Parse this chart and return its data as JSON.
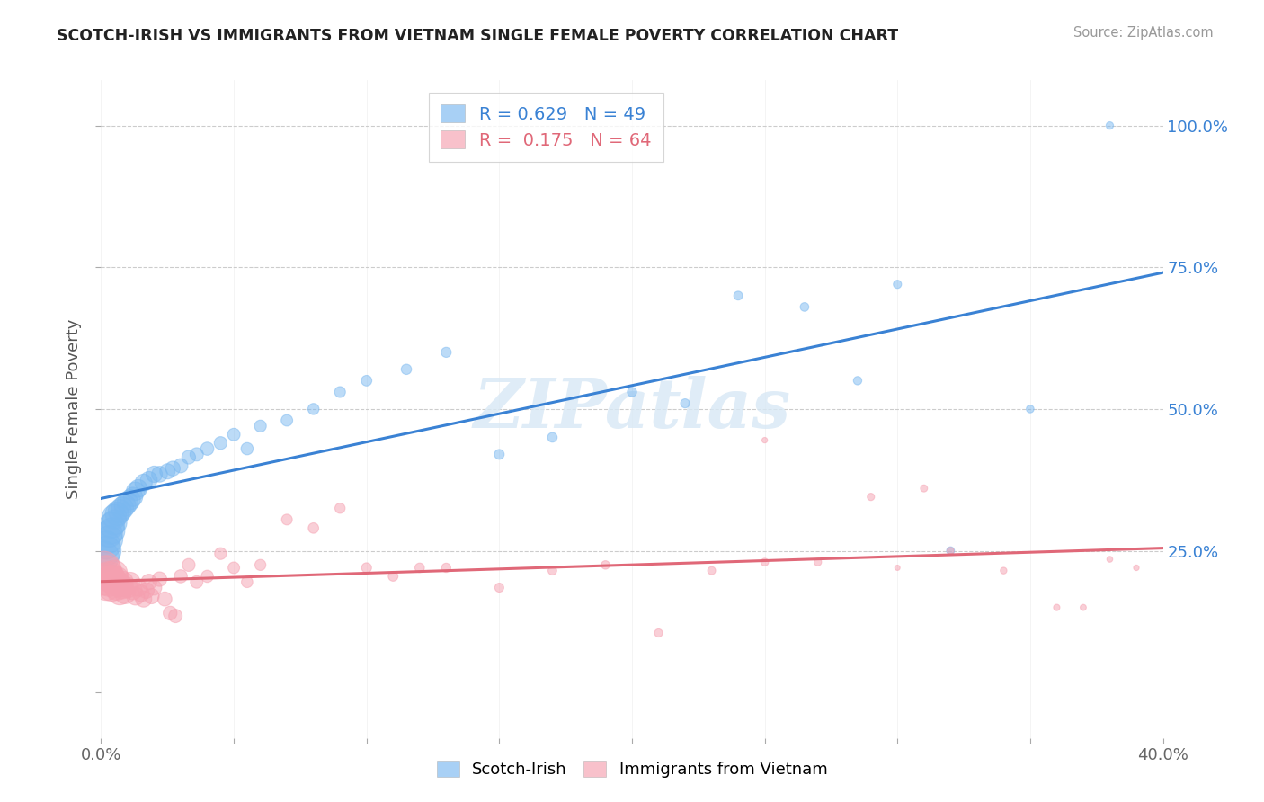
{
  "title": "SCOTCH-IRISH VS IMMIGRANTS FROM VIETNAM SINGLE FEMALE POVERTY CORRELATION CHART",
  "source": "Source: ZipAtlas.com",
  "ylabel": "Single Female Poverty",
  "ytick_values": [
    0.0,
    0.25,
    0.5,
    0.75,
    1.0
  ],
  "ytick_labels_right": [
    "",
    "25.0%",
    "50.0%",
    "75.0%",
    "100.0%"
  ],
  "xtick_minor_values": [
    0.0,
    0.05,
    0.1,
    0.15,
    0.2,
    0.25,
    0.3,
    0.35,
    0.4
  ],
  "xtick_label_positions": [
    0.0,
    0.4
  ],
  "xtick_label_texts": [
    "0.0%",
    "40.0%"
  ],
  "xmin": 0.0,
  "xmax": 0.4,
  "ymin": -0.08,
  "ymax": 1.08,
  "blue_R": "0.629",
  "blue_N": "49",
  "pink_R": "0.175",
  "pink_N": "64",
  "blue_color": "#7ab8f0",
  "pink_color": "#f5a0b0",
  "blue_line_color": "#3a82d4",
  "pink_line_color": "#e06878",
  "watermark": "ZIPatlas",
  "legend_label_blue": "Scotch-Irish",
  "legend_label_pink": "Immigrants from Vietnam",
  "blue_scatter_x": [
    0.001,
    0.002,
    0.002,
    0.003,
    0.003,
    0.004,
    0.004,
    0.005,
    0.005,
    0.006,
    0.007,
    0.008,
    0.009,
    0.01,
    0.011,
    0.012,
    0.013,
    0.014,
    0.016,
    0.018,
    0.02,
    0.022,
    0.025,
    0.027,
    0.03,
    0.033,
    0.036,
    0.04,
    0.045,
    0.05,
    0.055,
    0.06,
    0.07,
    0.08,
    0.09,
    0.1,
    0.115,
    0.13,
    0.15,
    0.17,
    0.2,
    0.22,
    0.24,
    0.265,
    0.285,
    0.3,
    0.32,
    0.35,
    0.38
  ],
  "blue_scatter_y": [
    0.24,
    0.25,
    0.26,
    0.27,
    0.28,
    0.285,
    0.295,
    0.3,
    0.31,
    0.315,
    0.32,
    0.325,
    0.33,
    0.335,
    0.34,
    0.345,
    0.355,
    0.36,
    0.37,
    0.375,
    0.385,
    0.385,
    0.39,
    0.395,
    0.4,
    0.415,
    0.42,
    0.43,
    0.44,
    0.455,
    0.43,
    0.47,
    0.48,
    0.5,
    0.53,
    0.55,
    0.57,
    0.6,
    0.42,
    0.45,
    0.53,
    0.51,
    0.7,
    0.68,
    0.55,
    0.72,
    0.25,
    0.5,
    1.0
  ],
  "blue_scatter_size": [
    600,
    550,
    500,
    480,
    460,
    440,
    420,
    400,
    380,
    360,
    340,
    320,
    300,
    280,
    260,
    240,
    220,
    200,
    190,
    180,
    170,
    160,
    150,
    140,
    130,
    120,
    115,
    110,
    105,
    100,
    95,
    90,
    85,
    80,
    76,
    72,
    68,
    65,
    62,
    59,
    56,
    53,
    50,
    48,
    45,
    43,
    40,
    38,
    35
  ],
  "pink_scatter_x": [
    0.001,
    0.001,
    0.002,
    0.002,
    0.003,
    0.003,
    0.004,
    0.004,
    0.005,
    0.005,
    0.006,
    0.006,
    0.007,
    0.007,
    0.008,
    0.008,
    0.009,
    0.01,
    0.011,
    0.012,
    0.013,
    0.014,
    0.015,
    0.016,
    0.017,
    0.018,
    0.019,
    0.02,
    0.022,
    0.024,
    0.026,
    0.028,
    0.03,
    0.033,
    0.036,
    0.04,
    0.045,
    0.05,
    0.055,
    0.06,
    0.07,
    0.08,
    0.09,
    0.1,
    0.11,
    0.12,
    0.13,
    0.15,
    0.17,
    0.19,
    0.21,
    0.23,
    0.25,
    0.27,
    0.29,
    0.31,
    0.32,
    0.34,
    0.36,
    0.37,
    0.38,
    0.39,
    0.25,
    0.3
  ],
  "pink_scatter_y": [
    0.22,
    0.2,
    0.19,
    0.215,
    0.205,
    0.195,
    0.2,
    0.185,
    0.21,
    0.195,
    0.185,
    0.2,
    0.19,
    0.175,
    0.185,
    0.195,
    0.175,
    0.185,
    0.195,
    0.18,
    0.17,
    0.185,
    0.175,
    0.165,
    0.18,
    0.195,
    0.17,
    0.185,
    0.2,
    0.165,
    0.14,
    0.135,
    0.205,
    0.225,
    0.195,
    0.205,
    0.245,
    0.22,
    0.195,
    0.225,
    0.305,
    0.29,
    0.325,
    0.22,
    0.205,
    0.22,
    0.22,
    0.185,
    0.215,
    0.225,
    0.105,
    0.215,
    0.23,
    0.23,
    0.345,
    0.36,
    0.25,
    0.215,
    0.15,
    0.15,
    0.235,
    0.22,
    0.445,
    0.22
  ],
  "pink_scatter_size": [
    700,
    650,
    620,
    590,
    560,
    530,
    500,
    470,
    440,
    420,
    400,
    380,
    360,
    340,
    320,
    300,
    280,
    260,
    240,
    220,
    205,
    190,
    180,
    170,
    160,
    155,
    150,
    145,
    135,
    128,
    122,
    116,
    110,
    105,
    100,
    95,
    90,
    86,
    82,
    78,
    74,
    70,
    67,
    64,
    61,
    58,
    55,
    52,
    49,
    46,
    43,
    41,
    38,
    36,
    34,
    32,
    30,
    28,
    26,
    24,
    22,
    20,
    20,
    18
  ]
}
